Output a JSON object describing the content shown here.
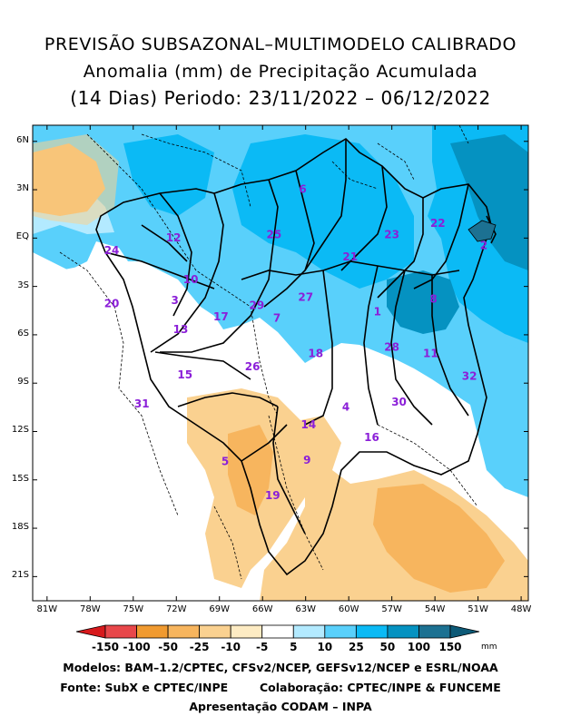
{
  "title": {
    "line1": "PREVISÃO SUBSAZONAL–MULTIMODELO CALIBRADO",
    "line2": "Anomalia (mm) de Precipitação Acumulada",
    "line3": "(14 Dias) Periodo: 23/11/2022 – 06/12/2022"
  },
  "axes": {
    "lat_labels": [
      "6N",
      "3N",
      "EQ",
      "3S",
      "6S",
      "9S",
      "12S",
      "15S",
      "18S",
      "21S"
    ],
    "lat_values": [
      6,
      3,
      0,
      -3,
      -6,
      -9,
      -12,
      -15,
      -18,
      -21
    ],
    "lon_labels": [
      "81W",
      "78W",
      "75W",
      "72W",
      "69W",
      "66W",
      "63W",
      "60W",
      "57W",
      "54W",
      "51W",
      "48W"
    ],
    "lon_values": [
      -81,
      -78,
      -75,
      -72,
      -69,
      -66,
      -63,
      -60,
      -57,
      -54,
      -51,
      -48
    ],
    "lon_range": [
      -82,
      -47.5
    ],
    "lat_range": [
      -22.5,
      7
    ]
  },
  "colorbar": {
    "labels": [
      "-150",
      "-100",
      "-50",
      "-25",
      "-10",
      "-5",
      "5",
      "10",
      "25",
      "50",
      "100",
      "150"
    ],
    "colors": [
      "#d7191c",
      "#e8474a",
      "#f09a30",
      "#f7b55e",
      "#fad190",
      "#fdebc3",
      "#ffffff",
      "#b3eaff",
      "#59d0fb",
      "#0bbaf5",
      "#0592c1",
      "#1c7192",
      "#0d5a77"
    ],
    "unit": "mm"
  },
  "regions": [
    {
      "label": "1",
      "lon": -58.0,
      "lat": -4.6
    },
    {
      "label": "2",
      "lon": -50.6,
      "lat": -0.5
    },
    {
      "label": "3",
      "lon": -72.1,
      "lat": -3.9
    },
    {
      "label": "4",
      "lon": -60.2,
      "lat": -10.5
    },
    {
      "label": "5",
      "lon": -68.6,
      "lat": -13.9
    },
    {
      "label": "6",
      "lon": -63.2,
      "lat": 3.0
    },
    {
      "label": "7",
      "lon": -65.0,
      "lat": -5.0
    },
    {
      "label": "8",
      "lon": -54.1,
      "lat": -3.8
    },
    {
      "label": "9",
      "lon": -62.9,
      "lat": -13.8
    },
    {
      "label": "10",
      "lon": -71.0,
      "lat": -2.6
    },
    {
      "label": "11",
      "lon": -54.3,
      "lat": -7.2
    },
    {
      "label": "12",
      "lon": -72.2,
      "lat": 0.0
    },
    {
      "label": "13",
      "lon": -71.7,
      "lat": -5.7
    },
    {
      "label": "14",
      "lon": -62.8,
      "lat": -11.6
    },
    {
      "label": "15",
      "lon": -71.4,
      "lat": -8.5
    },
    {
      "label": "16",
      "lon": -58.4,
      "lat": -12.4
    },
    {
      "label": "17",
      "lon": -68.9,
      "lat": -4.9
    },
    {
      "label": "18",
      "lon": -62.3,
      "lat": -7.2
    },
    {
      "label": "19",
      "lon": -65.3,
      "lat": -16.0
    },
    {
      "label": "20",
      "lon": -76.5,
      "lat": -4.1
    },
    {
      "label": "21",
      "lon": -59.9,
      "lat": -1.2
    },
    {
      "label": "22",
      "lon": -53.8,
      "lat": 0.9
    },
    {
      "label": "23",
      "lon": -57.0,
      "lat": 0.2
    },
    {
      "label": "24",
      "lon": -76.5,
      "lat": -0.8
    },
    {
      "label": "25",
      "lon": -65.2,
      "lat": 0.2
    },
    {
      "label": "26",
      "lon": -66.7,
      "lat": -8.0
    },
    {
      "label": "27",
      "lon": -63.0,
      "lat": -3.7
    },
    {
      "label": "28",
      "lon": -57.0,
      "lat": -6.8
    },
    {
      "label": "29",
      "lon": -66.4,
      "lat": -4.2
    },
    {
      "label": "30",
      "lon": -56.5,
      "lat": -10.2
    },
    {
      "label": "31",
      "lon": -74.4,
      "lat": -10.3
    },
    {
      "label": "32",
      "lon": -51.6,
      "lat": -8.6
    }
  ],
  "footer": {
    "line1": "Modelos: BAM–1.2/CPTEC, CFSv2/NCEP, GEFSv12/NCEP e ESRL/NOAA",
    "line2": "Fonte: SubX e CPTEC/INPE        Colaboração: CPTEC/INPE & FUNCEME",
    "line3": "Apresentação CODAM – INPA"
  }
}
